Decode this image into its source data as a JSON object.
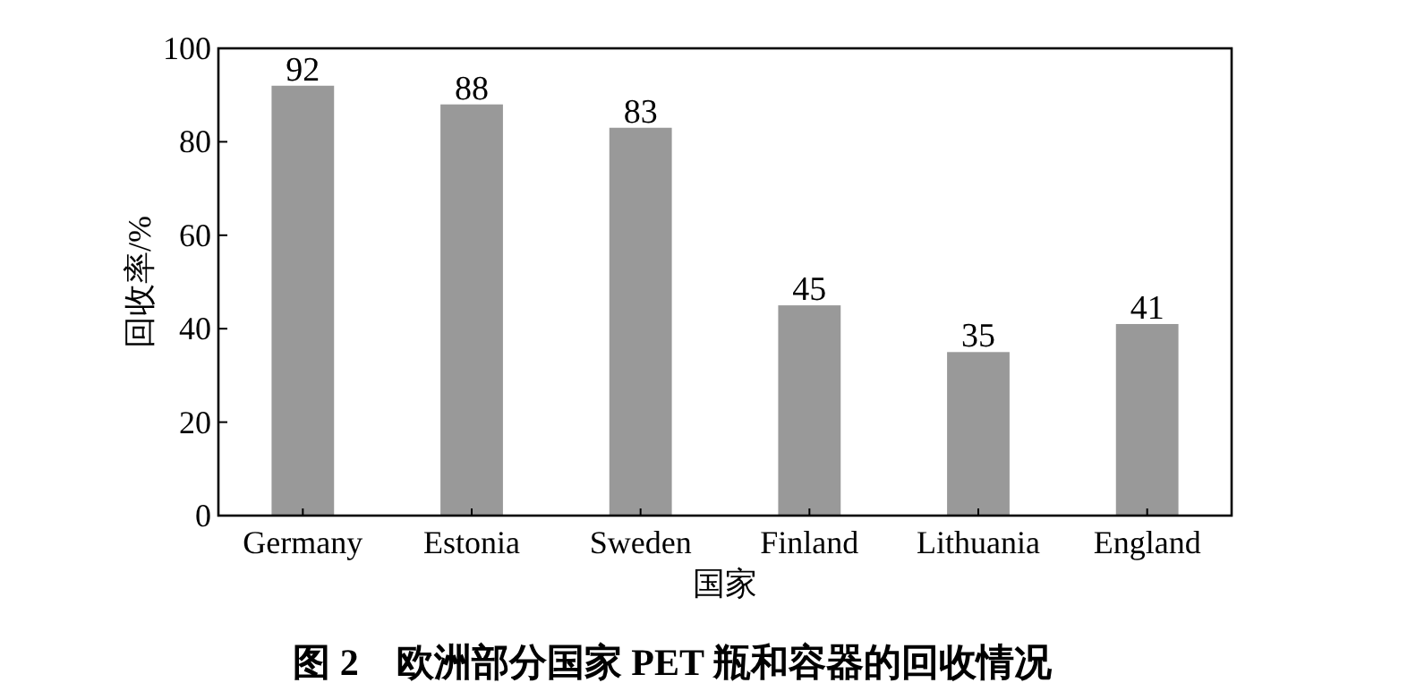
{
  "chart_data": {
    "type": "bar",
    "title": "图 2　欧洲部分国家 PET 瓶和容器的回收情况",
    "xlabel": "国家",
    "ylabel": "回收率/%",
    "categories": [
      "Germany",
      "Estonia",
      "Sweden",
      "Finland",
      "Lithuania",
      "England"
    ],
    "values": [
      92,
      88,
      83,
      45,
      35,
      41
    ],
    "color": "#999999",
    "ylim": [
      0,
      100
    ],
    "yticks": [
      0,
      20,
      40,
      60,
      80,
      100
    ],
    "data_labels": true
  }
}
